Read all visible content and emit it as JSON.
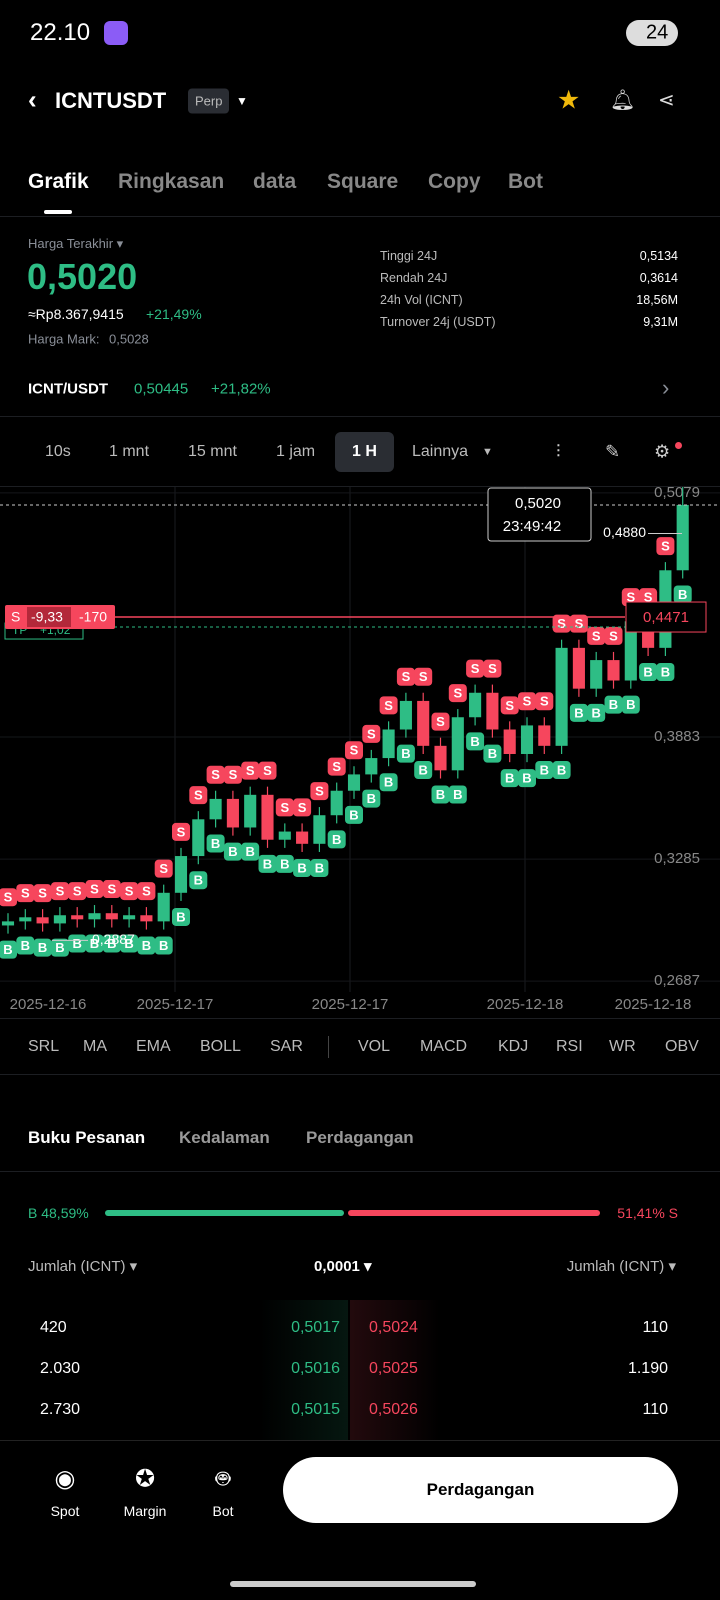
{
  "status_bar": {
    "time": "22.10",
    "battery": "24"
  },
  "header": {
    "symbol": "ICNTUSDT",
    "badge": "Perp"
  },
  "tabs": [
    "Grafik",
    "Ringkasan",
    "data",
    "Square",
    "Copy",
    "Bot"
  ],
  "ticker": {
    "last_price_label": "Harga Terakhir",
    "last_price": "0,5020",
    "idr": "≈Rp8.367,9415",
    "change": "+21,49%",
    "mark_label": "Harga Mark:",
    "mark_price": "0,5028",
    "stats": [
      [
        "Tinggi 24J",
        "0,5134"
      ],
      [
        "Rendah 24J",
        "0,3614"
      ],
      [
        "24h Vol (ICNT)",
        "18,56M"
      ],
      [
        "Turnover 24j (USDT)",
        "9,31M"
      ]
    ]
  },
  "spot": {
    "pair": "ICNT/USDT",
    "price": "0,50445",
    "change": "+21,82%"
  },
  "intervals": [
    "10s",
    "1 mnt",
    "15 mnt",
    "1 jam",
    "1 H",
    "Lainnya"
  ],
  "chart_data": {
    "type": "candlestick",
    "x_labels": [
      "2025-12-16",
      "2025-12-17",
      "2025-12-17",
      "2025-12-18",
      "2025-12-18"
    ],
    "open": [
      0.296,
      0.298,
      0.3,
      0.297,
      0.301,
      0.299,
      0.302,
      0.299,
      0.301,
      0.298,
      0.312,
      0.33,
      0.348,
      0.358,
      0.344,
      0.36,
      0.338,
      0.342,
      0.336,
      0.35,
      0.362,
      0.37,
      0.378,
      0.392,
      0.406,
      0.384,
      0.372,
      0.398,
      0.41,
      0.392,
      0.38,
      0.394,
      0.384,
      0.432,
      0.412,
      0.426,
      0.416,
      0.445,
      0.432,
      0.47
    ],
    "high": [
      0.302,
      0.304,
      0.304,
      0.305,
      0.305,
      0.306,
      0.306,
      0.305,
      0.305,
      0.316,
      0.334,
      0.352,
      0.362,
      0.362,
      0.364,
      0.364,
      0.346,
      0.346,
      0.354,
      0.366,
      0.374,
      0.382,
      0.396,
      0.41,
      0.41,
      0.388,
      0.402,
      0.414,
      0.414,
      0.396,
      0.398,
      0.398,
      0.436,
      0.436,
      0.43,
      0.43,
      0.449,
      0.449,
      0.474,
      0.512
    ],
    "low": [
      0.292,
      0.294,
      0.293,
      0.293,
      0.295,
      0.295,
      0.295,
      0.295,
      0.294,
      0.294,
      0.308,
      0.326,
      0.344,
      0.34,
      0.34,
      0.334,
      0.334,
      0.332,
      0.332,
      0.346,
      0.358,
      0.366,
      0.374,
      0.388,
      0.38,
      0.368,
      0.368,
      0.394,
      0.388,
      0.376,
      0.376,
      0.38,
      0.38,
      0.408,
      0.408,
      0.412,
      0.412,
      0.428,
      0.428,
      0.466
    ],
    "close": [
      0.298,
      0.3,
      0.297,
      0.301,
      0.299,
      0.302,
      0.299,
      0.301,
      0.298,
      0.312,
      0.33,
      0.348,
      0.358,
      0.344,
      0.36,
      0.338,
      0.342,
      0.336,
      0.35,
      0.362,
      0.37,
      0.378,
      0.392,
      0.406,
      0.384,
      0.372,
      0.398,
      0.41,
      0.392,
      0.38,
      0.394,
      0.384,
      0.432,
      0.412,
      0.426,
      0.416,
      0.445,
      0.432,
      0.47,
      0.502
    ],
    "up_color": "#2ebd85",
    "down_color": "#f6465d",
    "markers": {
      "buy": "B",
      "sell": "S"
    },
    "ylim": [
      0.2634,
      0.5108
    ],
    "yticks": [
      {
        "value": 0.5079,
        "label": "0,5079"
      },
      {
        "value": 0.3883,
        "label": "0,3883"
      },
      {
        "value": 0.3285,
        "label": "0,3285"
      },
      {
        "value": 0.2687,
        "label": "0,2687"
      }
    ],
    "last_price": {
      "value": 0.502,
      "label": "0,5020",
      "time": "23:49:42"
    },
    "high_mark": {
      "value": 0.488,
      "label": "0,4880"
    },
    "low_mark": {
      "value": 0.2887,
      "label": "0,2887"
    },
    "position": {
      "value": 0.4471,
      "label": "0,4471",
      "side": "S",
      "pnl": "-9,33",
      "size": "-170"
    },
    "take_profit": {
      "value": 0.4422,
      "label": "TP",
      "pnl": "+1,02"
    }
  },
  "indicators": [
    "SRL",
    "MA",
    "EMA",
    "BOLL",
    "SAR",
    "VOL",
    "MACD",
    "KDJ",
    "RSI",
    "WR",
    "OBV"
  ],
  "book": {
    "tabs": [
      "Buku Pesanan",
      "Kedalaman",
      "Perdagangan"
    ],
    "buy": {
      "value": 48.59,
      "label": "B 48,59%"
    },
    "sell": {
      "value": 51.41,
      "label": "51,41% S"
    },
    "col_left": "Jumlah (ICNT)",
    "precision": "0,0001",
    "col_right": "Jumlah (ICNT)",
    "rows": [
      [
        "420",
        "0,5017",
        "0,5024",
        "110"
      ],
      [
        "2.030",
        "0,5016",
        "0,5025",
        "1.190"
      ],
      [
        "2.730",
        "0,5015",
        "0,5026",
        "110"
      ]
    ]
  },
  "nav": {
    "items": [
      "Spot",
      "Margin",
      "Bot"
    ],
    "button": "Perdagangan"
  }
}
